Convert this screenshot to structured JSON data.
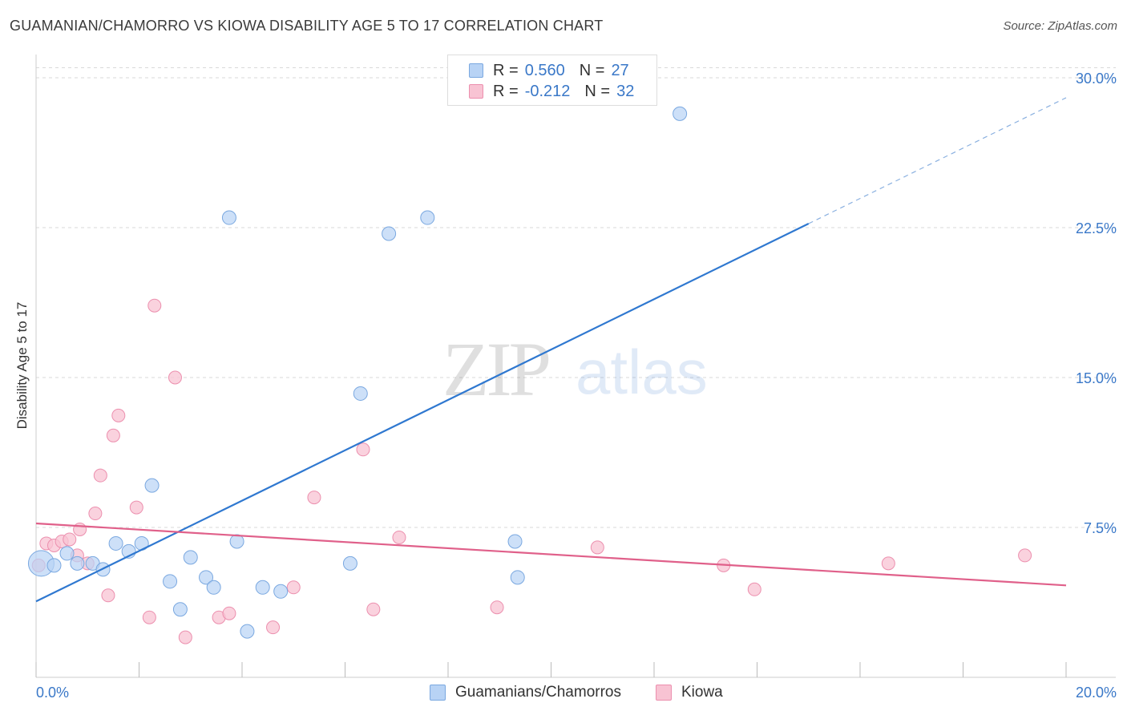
{
  "header": {
    "title": "GUAMANIAN/CHAMORRO VS KIOWA DISABILITY AGE 5 TO 17 CORRELATION CHART",
    "source": "Source: ZipAtlas.com"
  },
  "legend_top": [
    {
      "r_label": "R =",
      "r_value": "0.560",
      "n_label": "N =",
      "n_value": "27"
    },
    {
      "r_label": "R =",
      "r_value": "-0.212",
      "n_label": "N =",
      "n_value": "32"
    }
  ],
  "legend_bottom": [
    {
      "label": "Guamanians/Chamorros"
    },
    {
      "label": "Kiowa"
    }
  ],
  "watermark": {
    "zip": "ZIP",
    "atlas": "atlas"
  },
  "colors": {
    "blue_fill": "#b8d3f5",
    "blue_stroke": "#7aa8e0",
    "blue_line": "#2f78d0",
    "pink_fill": "#f8c3d3",
    "pink_stroke": "#ec8fae",
    "pink_line": "#e0608a",
    "axis_text": "#3a78c8",
    "grid": "#d9d9d9"
  },
  "chart_data": {
    "type": "scatter",
    "title": "GUAMANIAN/CHAMORRO VS KIOWA DISABILITY AGE 5 TO 17 CORRELATION CHART",
    "xlabel": "",
    "ylabel": "Disability Age 5 to 17",
    "xlim": [
      0,
      20
    ],
    "ylim": [
      0,
      30.5
    ],
    "x_tick_labels": [
      {
        "value": 0,
        "label": "0.0%"
      },
      {
        "value": 20,
        "label": "20.0%"
      }
    ],
    "y_tick_labels": [
      {
        "value": 7.5,
        "label": "7.5%"
      },
      {
        "value": 15,
        "label": "15.0%"
      },
      {
        "value": 22.5,
        "label": "22.5%"
      },
      {
        "value": 30,
        "label": "30.0%"
      }
    ],
    "series": [
      {
        "name": "Guamanians/Chamorros",
        "color": "#b8d3f5",
        "points": [
          {
            "x": 0.1,
            "y": 5.7,
            "big": true
          },
          {
            "x": 0.35,
            "y": 5.6
          },
          {
            "x": 0.6,
            "y": 6.2
          },
          {
            "x": 0.8,
            "y": 5.7
          },
          {
            "x": 1.1,
            "y": 5.7
          },
          {
            "x": 1.3,
            "y": 5.4
          },
          {
            "x": 1.55,
            "y": 6.7
          },
          {
            "x": 1.8,
            "y": 6.3
          },
          {
            "x": 2.05,
            "y": 6.7
          },
          {
            "x": 2.25,
            "y": 9.6
          },
          {
            "x": 2.6,
            "y": 4.8
          },
          {
            "x": 2.8,
            "y": 3.4
          },
          {
            "x": 3.0,
            "y": 6.0
          },
          {
            "x": 3.3,
            "y": 5.0
          },
          {
            "x": 3.45,
            "y": 4.5
          },
          {
            "x": 3.75,
            "y": 23.0
          },
          {
            "x": 3.9,
            "y": 6.8
          },
          {
            "x": 4.1,
            "y": 2.3
          },
          {
            "x": 4.4,
            "y": 4.5
          },
          {
            "x": 4.75,
            "y": 4.3
          },
          {
            "x": 6.1,
            "y": 5.7
          },
          {
            "x": 6.3,
            "y": 14.2
          },
          {
            "x": 6.85,
            "y": 22.2
          },
          {
            "x": 7.6,
            "y": 23.0
          },
          {
            "x": 9.3,
            "y": 6.8
          },
          {
            "x": 9.35,
            "y": 5.0
          },
          {
            "x": 12.5,
            "y": 28.2
          }
        ]
      },
      {
        "name": "Kiowa",
        "color": "#f8c3d3",
        "points": [
          {
            "x": 0.05,
            "y": 5.6
          },
          {
            "x": 0.2,
            "y": 6.7
          },
          {
            "x": 0.35,
            "y": 6.6
          },
          {
            "x": 0.5,
            "y": 6.8
          },
          {
            "x": 0.65,
            "y": 6.9
          },
          {
            "x": 0.8,
            "y": 6.1
          },
          {
            "x": 0.85,
            "y": 7.4
          },
          {
            "x": 1.0,
            "y": 5.7
          },
          {
            "x": 1.15,
            "y": 8.2
          },
          {
            "x": 1.25,
            "y": 10.1
          },
          {
            "x": 1.4,
            "y": 4.1
          },
          {
            "x": 1.5,
            "y": 12.1
          },
          {
            "x": 1.6,
            "y": 13.1
          },
          {
            "x": 1.95,
            "y": 8.5
          },
          {
            "x": 2.2,
            "y": 3.0
          },
          {
            "x": 2.3,
            "y": 18.6
          },
          {
            "x": 2.7,
            "y": 15.0
          },
          {
            "x": 2.9,
            "y": 2.0
          },
          {
            "x": 3.55,
            "y": 3.0
          },
          {
            "x": 3.75,
            "y": 3.2
          },
          {
            "x": 4.6,
            "y": 2.5
          },
          {
            "x": 5.0,
            "y": 4.5
          },
          {
            "x": 5.4,
            "y": 9.0
          },
          {
            "x": 6.35,
            "y": 11.4
          },
          {
            "x": 6.55,
            "y": 3.4
          },
          {
            "x": 7.05,
            "y": 7.0
          },
          {
            "x": 8.95,
            "y": 3.5
          },
          {
            "x": 10.9,
            "y": 6.5
          },
          {
            "x": 13.35,
            "y": 5.6
          },
          {
            "x": 13.95,
            "y": 4.4
          },
          {
            "x": 16.55,
            "y": 5.7
          },
          {
            "x": 19.2,
            "y": 6.1
          }
        ]
      }
    ],
    "trendlines": [
      {
        "series": "Guamanians/Chamorros",
        "x_start": 0,
        "y_start": 3.8,
        "x_end": 15.0,
        "y_end": 22.7,
        "dashed_to_x": 20.0,
        "dashed_to_y": 29.0
      },
      {
        "series": "Kiowa",
        "x_start": 0,
        "y_start": 7.7,
        "x_end": 20.0,
        "y_end": 4.6
      }
    ]
  }
}
